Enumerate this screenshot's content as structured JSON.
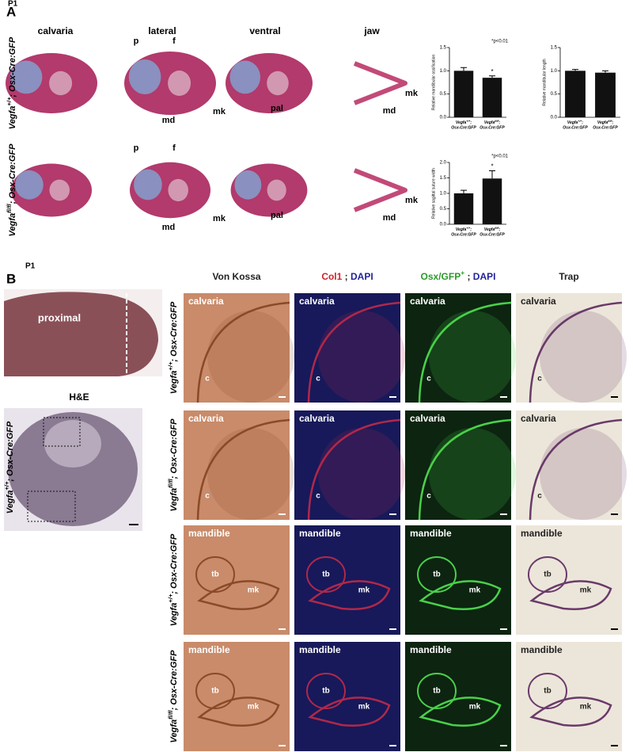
{
  "panel_a": {
    "label": "A",
    "stage": "P1",
    "columns": [
      "calvaria",
      "lateral",
      "ventral",
      "jaw"
    ],
    "rows": [
      {
        "genotype": [
          {
            "text": "Vegfa"
          },
          {
            "text": "+/+",
            "sup": true
          },
          {
            "text": "; Osx-Cre:GFP"
          }
        ],
        "annotations": [
          "p",
          "f",
          "md",
          "mk",
          "pal",
          "mk",
          "md"
        ]
      },
      {
        "genotype": [
          {
            "text": "Vegfa"
          },
          {
            "text": "fl/fl",
            "sup": true
          },
          {
            "text": "; Osx-Cre:GFP"
          }
        ],
        "annotations": [
          "p",
          "f",
          "md",
          "mk",
          "pal",
          "mk",
          "md"
        ]
      }
    ],
    "charts": [
      {
        "type": "bar",
        "y_label": "Relative mandibular ossification",
        "color": "#111111",
        "categories": [
          {
            "line1": [
              {
                "text": "Vegfa"
              },
              {
                "text": "+/+",
                "sup": true
              },
              {
                "text": ";"
              }
            ],
            "line2": "Osx-Cre:GFP"
          },
          {
            "line1": [
              {
                "text": "Vegfa"
              },
              {
                "text": "fl/fl",
                "sup": true
              },
              {
                "text": ";"
              }
            ],
            "line2": "Osx-Cre:GFP"
          }
        ],
        "values": [
          1.0,
          0.85
        ],
        "errors": [
          0.07,
          0.04
        ],
        "bar_labels": [
          null,
          "*"
        ],
        "note": "*p<0.01",
        "ylim": [
          0,
          1.5
        ],
        "yticks": [
          {
            "value": 0,
            "label": "0.0"
          },
          {
            "value": 0.5,
            "label": "0.5"
          },
          {
            "value": 1,
            "label": "1.0"
          },
          {
            "value": 1.5,
            "label": "1.5"
          }
        ]
      },
      {
        "type": "bar",
        "y_label": "Relative mandibular length",
        "color": "#111111",
        "categories": [
          {
            "line1": [
              {
                "text": "Vegfa"
              },
              {
                "text": "+/+",
                "sup": true
              },
              {
                "text": ";"
              }
            ],
            "line2": "Osx-Cre:GFP"
          },
          {
            "line1": [
              {
                "text": "Vegfa"
              },
              {
                "text": "fl/fl",
                "sup": true
              },
              {
                "text": ";"
              }
            ],
            "line2": "Osx-Cre:GFP"
          }
        ],
        "values": [
          1.0,
          0.96
        ],
        "errors": [
          0.03,
          0.04
        ],
        "bar_labels": [
          null,
          null
        ],
        "ylim": [
          0,
          1.5
        ],
        "yticks": [
          {
            "value": 0,
            "label": "0.0"
          },
          {
            "value": 0.5,
            "label": "0.5"
          },
          {
            "value": 1,
            "label": "1.0"
          },
          {
            "value": 1.5,
            "label": "1.5"
          }
        ]
      },
      {
        "type": "bar",
        "y_label": "Relative sagittal suture width",
        "color": "#111111",
        "categories": [
          {
            "line1": [
              {
                "text": "Vegfa"
              },
              {
                "text": "+/+",
                "sup": true
              },
              {
                "text": ";"
              }
            ],
            "line2": "Osx-Cre:GFP"
          },
          {
            "line1": [
              {
                "text": "Vegfa"
              },
              {
                "text": "fl/fl",
                "sup": true
              },
              {
                "text": ";"
              }
            ],
            "line2": "Osx-Cre:GFP"
          }
        ],
        "values": [
          1.0,
          1.48
        ],
        "errors": [
          0.1,
          0.25
        ],
        "bar_labels": [
          null,
          "*"
        ],
        "note": "*p<0.01",
        "ylim": [
          0,
          2
        ],
        "yticks": [
          {
            "value": 0,
            "label": "0.0"
          },
          {
            "value": 0.5,
            "label": "0.5"
          },
          {
            "value": 1,
            "label": "1.0"
          },
          {
            "value": 1.5,
            "label": "1.5"
          },
          {
            "value": 2,
            "label": "2.0"
          }
        ]
      }
    ]
  },
  "panel_b": {
    "label": "B",
    "stage": "P1",
    "photo_label": "proximal",
    "he_label": "H&E",
    "genotype": [
      {
        "text": "Vegfa"
      },
      {
        "text": "+/+",
        "sup": true
      },
      {
        "text": "; Osx-Cre:GFP"
      }
    ],
    "columns": [
      [
        {
          "text": "Von Kossa",
          "color": "#222222"
        }
      ],
      [
        {
          "text": "Col1",
          "color": "#d0202a"
        },
        {
          "text": " ; ",
          "color": "#222222"
        },
        {
          "text": "DAPI",
          "color": "#23239a"
        }
      ],
      [
        {
          "text": "Osx/GFP",
          "color": "#2a9a2a"
        },
        {
          "text": "+",
          "sup": true,
          "color": "#2a9a2a"
        },
        {
          "text": " ; ",
          "color": "#222222"
        },
        {
          "text": "DAPI",
          "color": "#23239a"
        }
      ],
      [
        {
          "text": "Trap",
          "color": "#222222"
        }
      ]
    ],
    "rows": [
      {
        "genotype": [
          {
            "text": "Vegfa"
          },
          {
            "text": "+/+",
            "sup": true
          },
          {
            "text": "; Osx-Cre:GFP"
          }
        ],
        "tissue": "calvaria",
        "marks": [
          "c"
        ]
      },
      {
        "genotype": [
          {
            "text": "Vegfa"
          },
          {
            "text": "fl/fl",
            "sup": true
          },
          {
            "text": "; Osx-Cre:GFP"
          }
        ],
        "tissue": "calvaria",
        "marks": [
          "c"
        ]
      },
      {
        "genotype": [
          {
            "text": "Vegfa"
          },
          {
            "text": "+/+",
            "sup": true
          },
          {
            "text": "; Osx-Cre:GFP"
          }
        ],
        "tissue": "mandible",
        "marks": [
          "tb",
          "mk"
        ]
      },
      {
        "genotype": [
          {
            "text": "Vegfa"
          },
          {
            "text": "fl/fl",
            "sup": true
          },
          {
            "text": "; Osx-Cre:GFP"
          }
        ],
        "tissue": "mandible",
        "marks": [
          "tb",
          "mk"
        ]
      }
    ]
  }
}
